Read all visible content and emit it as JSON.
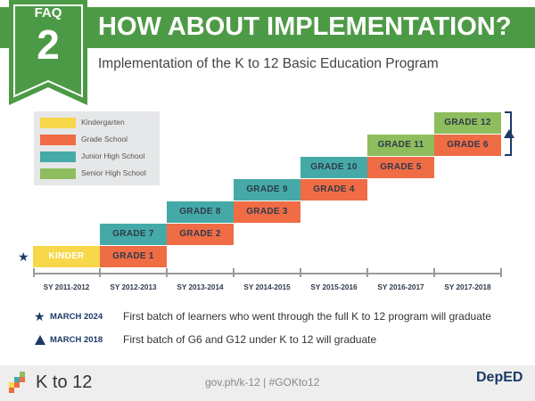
{
  "header": {
    "faq_label": "FAQ",
    "faq_number": "2",
    "title": "HOW ABOUT IMPLEMENTATION?",
    "subtitle": "Implementation of the K to 12 Basic Education Program"
  },
  "legend": [
    {
      "label": "Kindergarten",
      "color": "#f7d84a"
    },
    {
      "label": "Grade School",
      "color": "#ef6c45"
    },
    {
      "label": "Junior High School",
      "color": "#45aaa7"
    },
    {
      "label": "Senior High School",
      "color": "#8dbd5c"
    }
  ],
  "school_years": [
    "SY 2011-2012",
    "SY 2012-2013",
    "SY 2013-2014",
    "SY 2014-2015",
    "SY 2015-2016",
    "SY 2016-2017",
    "SY 2017-2018"
  ],
  "blocks": {
    "kinder": "KINDER",
    "g1": "GRADE 1",
    "g2": "GRADE 2",
    "g3": "GRADE 3",
    "g4": "GRADE 4",
    "g5": "GRADE 5",
    "g6": "GRADE 6",
    "g7": "GRADE 7",
    "g8": "GRADE 8",
    "g9": "GRADE 9",
    "g10": "GRADE 10",
    "g11": "GRADE 11",
    "g12": "GRADE 12"
  },
  "notes": [
    {
      "icon": "star-icon",
      "date": "MARCH 2024",
      "text": "First batch of learners who went through the full K to 12 program will graduate"
    },
    {
      "icon": "triangle-icon",
      "date": "MARCH 2018",
      "text": "First batch of G6 and G12 under K to 12 will graduate"
    }
  ],
  "footer": {
    "logo_text": "K to 12",
    "url_text": "gov.ph/k-12 | #GOKto12",
    "deped_text": "DepED"
  }
}
